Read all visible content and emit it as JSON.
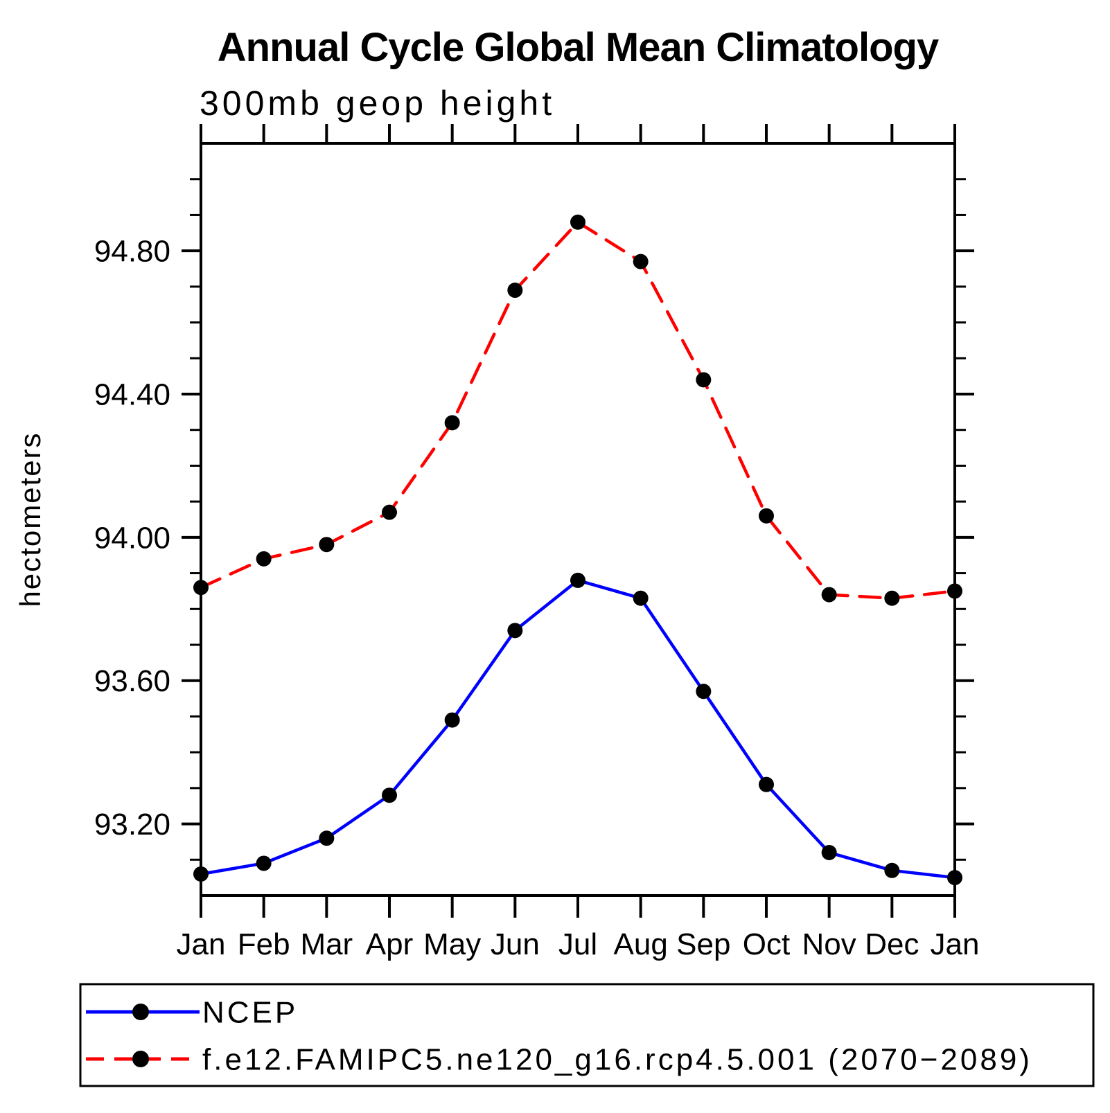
{
  "chart_data": {
    "type": "line",
    "title": "Annual Cycle Global Mean Climatology",
    "subtitle": "300mb geop height",
    "ylabel": "hectometers",
    "xlabel": "",
    "categories": [
      "Jan",
      "Feb",
      "Mar",
      "Apr",
      "May",
      "Jun",
      "Jul",
      "Aug",
      "Sep",
      "Oct",
      "Nov",
      "Dec",
      "Jan"
    ],
    "series": [
      {
        "name": "NCEP",
        "color": "#0000FF",
        "line_style": "solid",
        "marker": "filled-circle",
        "marker_color": "#000000",
        "values": [
          93.06,
          93.09,
          93.16,
          93.28,
          93.49,
          93.74,
          93.88,
          93.83,
          93.57,
          93.31,
          93.12,
          93.07,
          93.05
        ]
      },
      {
        "name": "f.e12.FAMIPC5.ne120_g16.rcp4.5.001 (2070−2089)",
        "color": "#FF0000",
        "line_style": "dashed",
        "marker": "filled-circle",
        "marker_color": "#000000",
        "values": [
          93.86,
          93.94,
          93.98,
          94.07,
          94.32,
          94.69,
          94.88,
          94.77,
          94.44,
          94.06,
          93.84,
          93.83,
          93.85
        ]
      }
    ],
    "ylim": [
      93.0,
      95.1
    ],
    "y_major_ticks": [
      93.2,
      93.6,
      94.0,
      94.4,
      94.8
    ],
    "y_tick_labels": [
      "93.20",
      "93.60",
      "94.00",
      "94.40",
      "94.80"
    ],
    "y_minor_ticks": [
      93.1,
      93.3,
      93.4,
      93.5,
      93.7,
      93.8,
      93.9,
      94.1,
      94.2,
      94.3,
      94.5,
      94.6,
      94.7,
      94.9,
      95.0
    ],
    "grid": false,
    "legend_position": "bottom-left-box",
    "frame_color": "#000000",
    "background_color": "#FFFFFF"
  }
}
